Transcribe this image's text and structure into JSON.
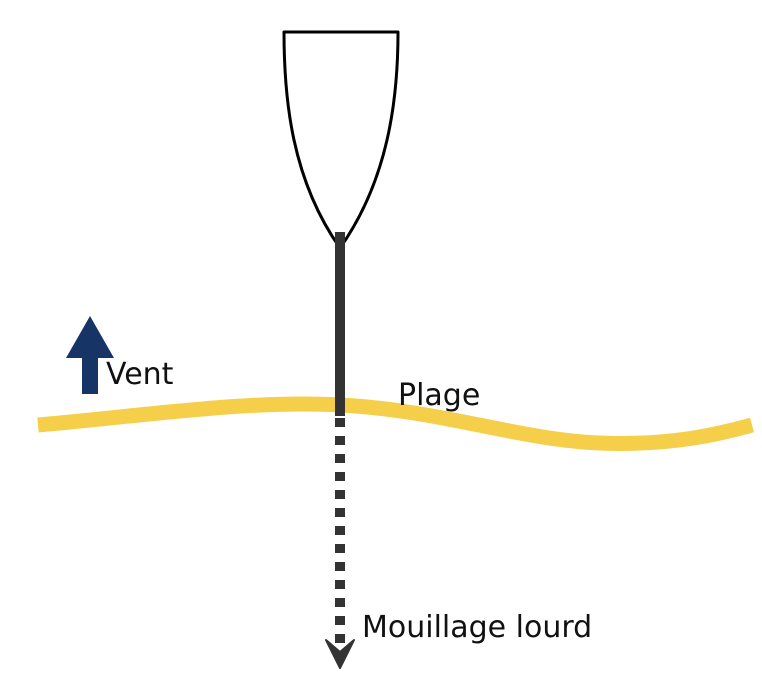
{
  "labels": {
    "wind": "Vent",
    "beach": "Plage",
    "mooring": "Mouillage lourd"
  },
  "colors": {
    "wind_arrow": "#163566",
    "beach_line": "#F5CF4A",
    "line": "#333333",
    "boat_outline": "#000000",
    "text": "#111111"
  },
  "icons": {
    "wind": "up-arrow-icon",
    "mooring": "down-arrowhead-icon"
  }
}
